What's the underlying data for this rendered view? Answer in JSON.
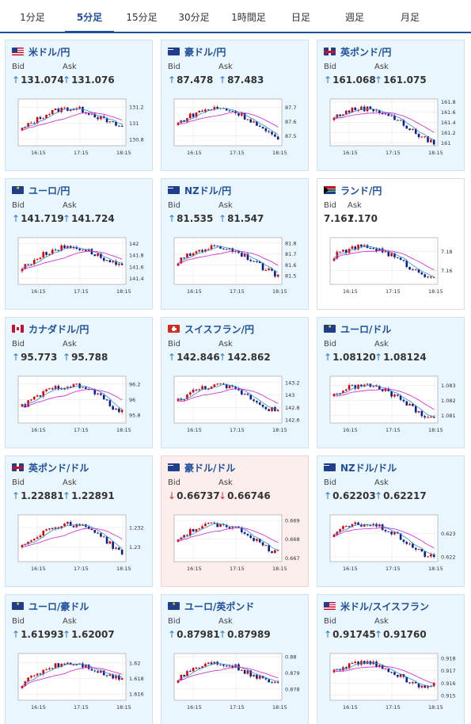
{
  "tabs": [
    "1分足",
    "5分足",
    "15分足",
    "30分足",
    "1時間足",
    "日足",
    "週足",
    "月足"
  ],
  "active_tab": 1,
  "labels": {
    "bid": "Bid",
    "ask": "Ask"
  },
  "colors": {
    "up_candle": "#e00000",
    "down_candle": "#0a1e8c",
    "ma_fast": "#2a90d8",
    "ma_slow": "#d020d0",
    "accent": "#1e4f9c"
  },
  "x_ticks": [
    "16:15",
    "17:15",
    "18:15"
  ],
  "cards": [
    {
      "name": "usd-jpy",
      "title": "米ドル/円",
      "flag": "us",
      "bid": "131.074",
      "ask": "131.076",
      "dir": "up",
      "bg": "blue",
      "yticks": [
        "131.2",
        "131",
        "130.8"
      ],
      "ylim": [
        130.72,
        131.3
      ],
      "last": 131.07
    },
    {
      "name": "aud-jpy",
      "title": "豪ドル/円",
      "flag": "au",
      "bid": "87.478",
      "ask": "87.483",
      "dir": "up",
      "bg": "blue",
      "yticks": [
        "87.7",
        "87.6",
        "87.5"
      ],
      "ylim": [
        87.43,
        87.76
      ],
      "last": 87.48
    },
    {
      "name": "gbp-jpy",
      "title": "英ポンド/円",
      "flag": "gb",
      "bid": "161.068",
      "ask": "161.075",
      "dir": "up",
      "bg": "blue",
      "yticks": [
        "161.8",
        "161.6",
        "161.4",
        "161.2",
        "161"
      ],
      "ylim": [
        160.95,
        161.85
      ],
      "last": 161.07
    },
    {
      "name": "eur-jpy",
      "title": "ユーロ/円",
      "flag": "eu",
      "bid": "141.719",
      "ask": "141.724",
      "dir": "up",
      "bg": "blue",
      "yticks": [
        "142",
        "141.8",
        "141.6",
        "141.4"
      ],
      "ylim": [
        141.3,
        142.1
      ],
      "last": 141.72
    },
    {
      "name": "nzd-jpy",
      "title": "NZドル/円",
      "flag": "nz",
      "bid": "81.535",
      "ask": "81.547",
      "dir": "up",
      "bg": "blue",
      "yticks": [
        "81.8",
        "81.7",
        "81.6",
        "81.5"
      ],
      "ylim": [
        81.42,
        81.85
      ],
      "last": 81.54
    },
    {
      "name": "zar-jpy",
      "title": "ランド/円",
      "flag": "za",
      "bid": "7.161",
      "ask": "7.170",
      "dir": "none",
      "bg": "white",
      "yticks": [
        "7.18",
        "7.16"
      ],
      "ylim": [
        7.145,
        7.195
      ],
      "last": 7.165
    },
    {
      "name": "cad-jpy",
      "title": "カナダドル/円",
      "flag": "ca",
      "bid": "95.773",
      "ask": "95.788",
      "dir": "up",
      "bg": "blue",
      "yticks": [
        "96.2",
        "96",
        "95.8"
      ],
      "ylim": [
        95.7,
        96.3
      ],
      "last": 95.78
    },
    {
      "name": "chf-jpy",
      "title": "スイスフラン/円",
      "flag": "ch",
      "bid": "142.846",
      "ask": "142.862",
      "dir": "up",
      "bg": "blue",
      "yticks": [
        "143.2",
        "143",
        "142.8",
        "142.6"
      ],
      "ylim": [
        142.55,
        143.3
      ],
      "last": 142.85
    },
    {
      "name": "eur-usd",
      "title": "ユーロ/ドル",
      "flag": "eu",
      "bid": "1.08120",
      "ask": "1.08124",
      "dir": "up",
      "bg": "blue",
      "yticks": [
        "1.083",
        "1.082",
        "1.081"
      ],
      "ylim": [
        1.0805,
        1.0836
      ],
      "last": 1.0812
    },
    {
      "name": "gbp-usd",
      "title": "英ポンド/ドル",
      "flag": "gb",
      "bid": "1.22881",
      "ask": "1.22891",
      "dir": "up",
      "bg": "blue",
      "yticks": [
        "1.232",
        "1.23"
      ],
      "ylim": [
        1.2285,
        1.2333
      ],
      "last": 1.2288
    },
    {
      "name": "aud-usd",
      "title": "豪ドル/ドル",
      "flag": "au",
      "bid": "0.66737",
      "ask": "0.66746",
      "dir": "down",
      "bg": "pink",
      "yticks": [
        "0.669",
        "0.668",
        "0.667"
      ],
      "ylim": [
        0.6668,
        0.6693
      ],
      "last": 0.6674
    },
    {
      "name": "nzd-usd",
      "title": "NZドル/ドル",
      "flag": "nz",
      "bid": "0.62203",
      "ask": "0.62217",
      "dir": "up",
      "bg": "blue",
      "yticks": [
        "0.623",
        "0.622"
      ],
      "ylim": [
        0.6218,
        0.6238
      ],
      "last": 0.6221
    },
    {
      "name": "eur-aud",
      "title": "ユーロ/豪ドル",
      "flag": "eu",
      "bid": "1.61993",
      "ask": "1.62007",
      "dir": "up",
      "bg": "blue",
      "yticks": [
        "1.62",
        "1.618",
        "1.616"
      ],
      "ylim": [
        1.6152,
        1.6212
      ],
      "last": 1.62
    },
    {
      "name": "eur-gbp",
      "title": "ユーロ/英ポンド",
      "flag": "eu",
      "bid": "0.87981",
      "ask": "0.87989",
      "dir": "up",
      "bg": "blue",
      "yticks": [
        "0.88",
        "0.879",
        "0.878"
      ],
      "ylim": [
        0.8773,
        0.8802
      ],
      "last": 0.8798
    },
    {
      "name": "usd-chf",
      "title": "米ドル/スイスフラン",
      "flag": "us",
      "bid": "0.91745",
      "ask": "0.91760",
      "dir": "up",
      "bg": "blue",
      "yticks": [
        "0.918",
        "0.917",
        "0.916",
        "0.915"
      ],
      "ylim": [
        0.9146,
        0.9184
      ],
      "last": 0.9175
    }
  ]
}
